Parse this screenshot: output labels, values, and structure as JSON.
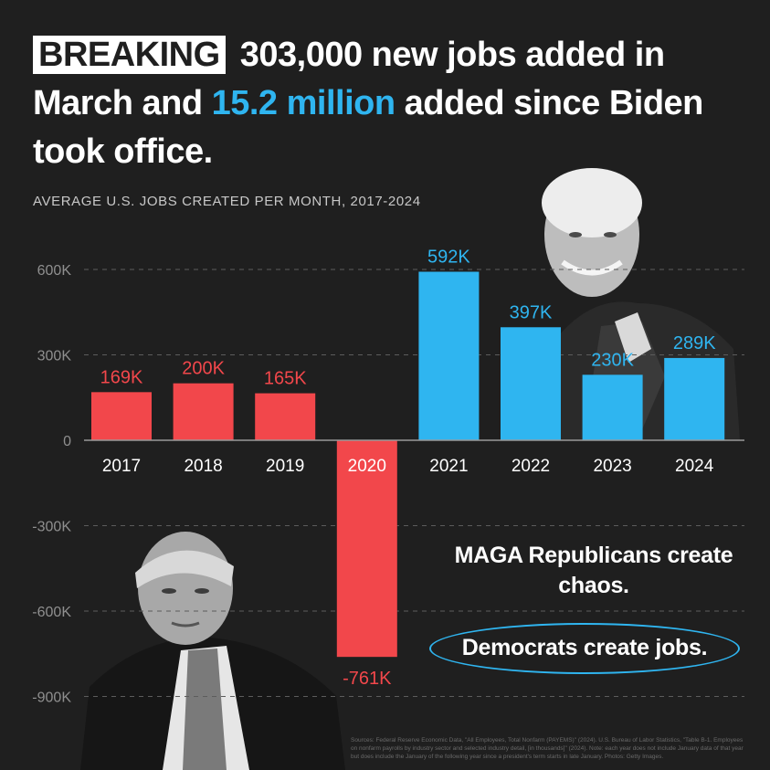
{
  "headline": {
    "badge": "BREAKING",
    "part1": " 303,000 new jobs added in March and ",
    "highlight": "15.2 million",
    "part2": " added since Biden took office."
  },
  "subtitle": "AVERAGE U.S. JOBS CREATED PER MONTH, 2017-2024",
  "colors": {
    "red": "#f2474b",
    "blue": "#2fb5f0",
    "background": "#1f1f1f"
  },
  "chart_data": {
    "type": "bar",
    "title": "AVERAGE U.S. JOBS CREATED PER MONTH, 2017-2024",
    "categories": [
      "2017",
      "2018",
      "2019",
      "2020",
      "2021",
      "2022",
      "2023",
      "2024"
    ],
    "values": [
      169,
      200,
      165,
      -761,
      592,
      397,
      230,
      289
    ],
    "value_labels": [
      "169K",
      "200K",
      "165K",
      "-761K",
      "592K",
      "397K",
      "230K",
      "289K"
    ],
    "bar_colors": [
      "#f2474b",
      "#f2474b",
      "#f2474b",
      "#f2474b",
      "#2fb5f0",
      "#2fb5f0",
      "#2fb5f0",
      "#2fb5f0"
    ],
    "yticks": [
      600,
      300,
      0,
      -300,
      -600,
      -900
    ],
    "ytick_labels": [
      "600K",
      "300K",
      "0",
      "-300K",
      "-600K",
      "-900K"
    ],
    "ylim": [
      -900,
      600
    ],
    "grid": true
  },
  "messages": {
    "chaos": "MAGA Republicans create chaos.",
    "jobs": "Democrats create jobs."
  },
  "sources": "Sources: Federal Reserve Economic Data, \"All Employees, Total Nonfarm (PAYEMS)\" (2024). U.S. Bureau of Labor Statistics, \"Table B-1. Employees on nonfarm payrolls by industry sector and selected industry detail, [in thousands]\" (2024). Note: each year does not include January data of that year but does include the January of the following year since a president's term starts in late January. Photos: Getty Images."
}
